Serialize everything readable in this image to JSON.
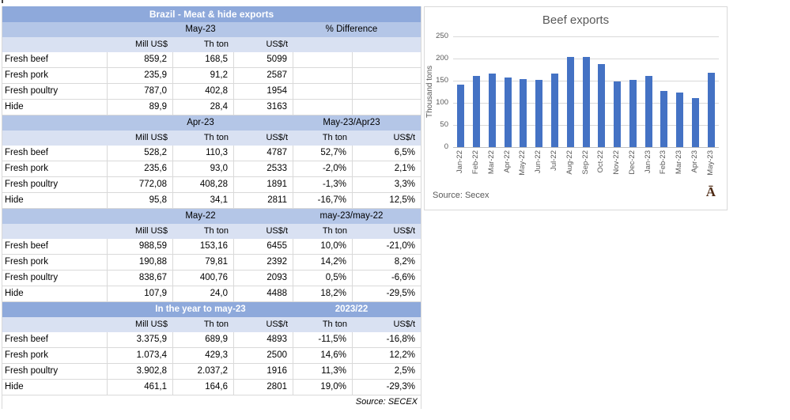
{
  "table": {
    "title": "Brazil - Meat & hide exports",
    "source": "Source: SECEX",
    "units": [
      "",
      "Mill US$",
      "Th ton",
      "US$/t",
      "Th ton",
      "US$/t"
    ],
    "sections": [
      {
        "period_label": "May-23",
        "diff_label": "% Difference",
        "header_style": "light",
        "show_diff_units": false,
        "rows": [
          [
            "Fresh beef",
            "859,2",
            "168,5",
            "5099",
            "",
            ""
          ],
          [
            "Fresh pork",
            "235,9",
            "91,2",
            "2587",
            "",
            ""
          ],
          [
            "Fresh poultry",
            "787,0",
            "402,8",
            "1954",
            "",
            ""
          ],
          [
            "Hide",
            "89,9",
            "28,4",
            "3163",
            "",
            ""
          ]
        ]
      },
      {
        "period_label": "Apr-23",
        "diff_label": "May-23/Apr23",
        "header_style": "light",
        "show_diff_units": true,
        "rows": [
          [
            "Fresh beef",
            "528,2",
            "110,3",
            "4787",
            "52,7%",
            "6,5%"
          ],
          [
            "Fresh pork",
            "235,6",
            "93,0",
            "2533",
            "-2,0%",
            "2,1%"
          ],
          [
            "Fresh poultry",
            "772,08",
            "408,28",
            "1891",
            "-1,3%",
            "3,3%"
          ],
          [
            "Hide",
            "95,8",
            "34,1",
            "2811",
            "-16,7%",
            "12,5%"
          ]
        ]
      },
      {
        "period_label": "May-22",
        "diff_label": "may-23/may-22",
        "header_style": "light",
        "show_diff_units": true,
        "rows": [
          [
            "Fresh beef",
            "988,59",
            "153,16",
            "6455",
            "10,0%",
            "-21,0%"
          ],
          [
            "Fresh pork",
            "190,88",
            "79,81",
            "2392",
            "14,2%",
            "8,2%"
          ],
          [
            "Fresh poultry",
            "838,67",
            "400,76",
            "2093",
            "0,5%",
            "-6,6%"
          ],
          [
            "Hide",
            "107,9",
            "24,0",
            "4488",
            "18,2%",
            "-29,5%"
          ]
        ]
      },
      {
        "period_label": "In the year to may-23",
        "diff_label": "2023/22",
        "header_style": "blue",
        "show_diff_units": true,
        "rows": [
          [
            "Fresh beef",
            "3.375,9",
            "689,9",
            "4893",
            "-11,5%",
            "-16,8%"
          ],
          [
            "Fresh pork",
            "1.073,4",
            "429,3",
            "2500",
            "14,6%",
            "12,2%"
          ],
          [
            "Fresh poultry",
            "3.902,8",
            "2.037,2",
            "1916",
            "11,3%",
            "2,5%"
          ],
          [
            "Hide",
            "461,1",
            "164,6",
            "2801",
            "19,0%",
            "-29,3%"
          ]
        ]
      }
    ]
  },
  "chart": {
    "stray_glyph": "Ā"
  },
  "chart_data": {
    "type": "bar",
    "title": "Beef exports",
    "xlabel": "",
    "ylabel": "Thousand tons",
    "source": "Source: Secex",
    "categories": [
      "Jan-22",
      "Feb-22",
      "Mar-22",
      "Apr-22",
      "May-22",
      "Jun-22",
      "Jul-22",
      "Aug-22",
      "Sep-22",
      "Oct-22",
      "Nov-22",
      "Dec-22",
      "Jan-23",
      "Feb-23",
      "Mar-23",
      "Apr-23",
      "May-23"
    ],
    "values": [
      141,
      160,
      167,
      158,
      153,
      152,
      166,
      203,
      203,
      188,
      149,
      152,
      160,
      127,
      124,
      110,
      168
    ],
    "ylim": [
      0,
      250
    ],
    "yticks": [
      0,
      50,
      100,
      150,
      200,
      250
    ],
    "grid": true,
    "legend": false,
    "bar_color": "#4472C4"
  },
  "colors": {
    "header_blue": "#8EA9DB",
    "header_light": "#B4C6E7",
    "units_bg": "#D9E1F2",
    "bar": "#4472C4",
    "chart_text": "#595959",
    "grid_line": "#D9D9D9"
  }
}
